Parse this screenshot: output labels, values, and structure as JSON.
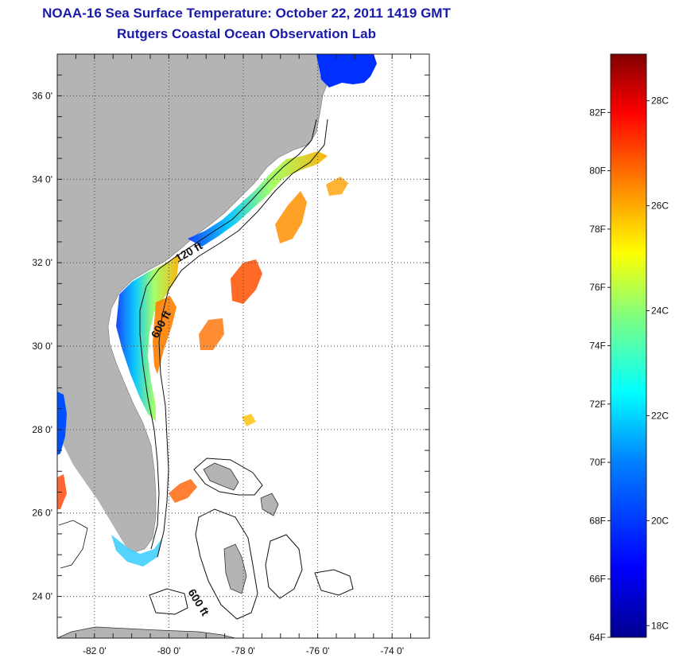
{
  "title": "NOAA-16 Sea Surface Temperature:  October 22, 2011 1419 GMT",
  "subtitle": "Rutgers Coastal Ocean Observation Lab",
  "map": {
    "lon_range": [
      -83,
      -73
    ],
    "lat_range": [
      23,
      37
    ],
    "lon_ticks": [
      {
        "value": -82,
        "label": "-82 0'"
      },
      {
        "value": -80,
        "label": "-80 0'"
      },
      {
        "value": -78,
        "label": "-78 0'"
      },
      {
        "value": -76,
        "label": "-76 0'"
      },
      {
        "value": -74,
        "label": "-74 0'"
      }
    ],
    "lat_ticks": [
      {
        "value": 24,
        "label": "24 0'"
      },
      {
        "value": 26,
        "label": "26 0'"
      },
      {
        "value": 28,
        "label": "28 0'"
      },
      {
        "value": 30,
        "label": "30 0'"
      },
      {
        "value": 32,
        "label": "32 0'"
      },
      {
        "value": 34,
        "label": "34 0'"
      },
      {
        "value": 36,
        "label": "36 0'"
      }
    ],
    "grid": "dotted",
    "land_color": "#b4b4b4",
    "isobath_labels": [
      "120 ft",
      "600 ft",
      "600 ft"
    ]
  },
  "colorbar": {
    "range_f": [
      64,
      84
    ],
    "fahrenheit_labels": [
      "64F",
      "66F",
      "68F",
      "70F",
      "72F",
      "74F",
      "76F",
      "78F",
      "80F",
      "82F"
    ],
    "celsius_labels": [
      "18C",
      "20C",
      "22C",
      "24C",
      "26C",
      "28C"
    ],
    "colors": [
      "#00008f",
      "#0000ff",
      "#0080ff",
      "#00ffff",
      "#80ff80",
      "#ffff00",
      "#ff8000",
      "#ff0000",
      "#800000"
    ]
  }
}
